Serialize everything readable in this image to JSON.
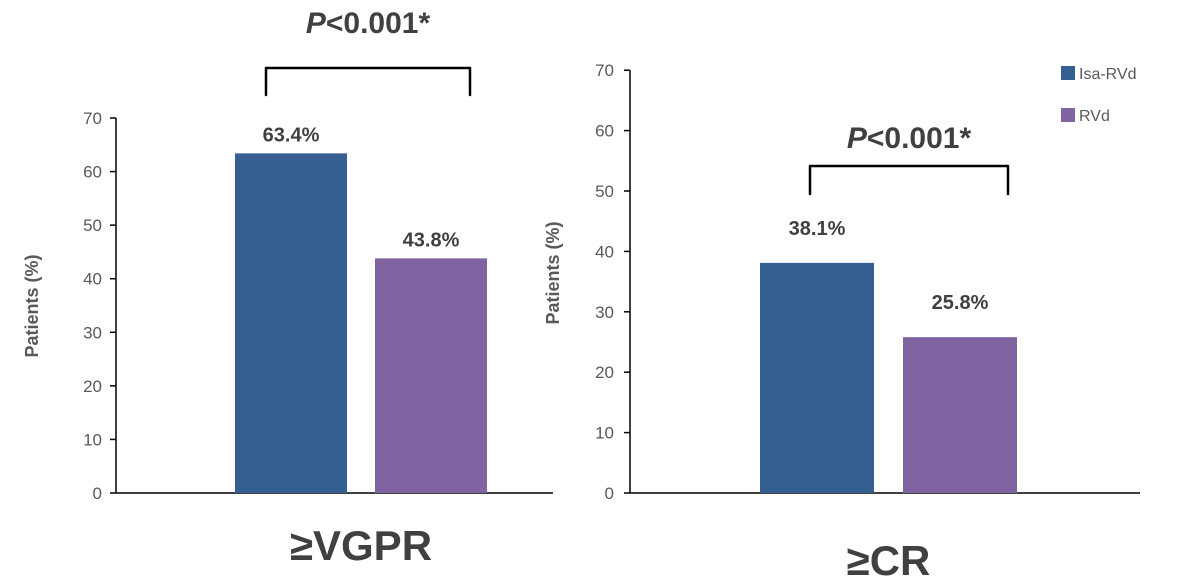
{
  "chart_data": [
    {
      "type": "bar",
      "categories": [
        "≥VGPR"
      ],
      "series": [
        {
          "name": "Isa-RVd",
          "values": [
            63.4
          ],
          "color": "#355F91"
        },
        {
          "name": "RVd",
          "values": [
            43.8
          ],
          "color": "#8064A2"
        }
      ],
      "data_labels": [
        "63.4%",
        "43.8%"
      ],
      "ylabel": "Patients (%)",
      "ylim": [
        0,
        70
      ],
      "yticks": [
        0,
        10,
        20,
        30,
        40,
        50,
        60,
        70
      ],
      "annotation": {
        "italic": "P",
        "text": "<0.001*"
      },
      "grid": false
    },
    {
      "type": "bar",
      "categories": [
        "≥CR"
      ],
      "series": [
        {
          "name": "Isa-RVd",
          "values": [
            38.1
          ],
          "color": "#355F91"
        },
        {
          "name": "RVd",
          "values": [
            25.8
          ],
          "color": "#8064A2"
        }
      ],
      "data_labels": [
        "38.1%",
        "25.8%"
      ],
      "ylabel": "Patients (%)",
      "ylim": [
        0,
        70
      ],
      "yticks": [
        0,
        10,
        20,
        30,
        40,
        50,
        60,
        70
      ],
      "annotation": {
        "italic": "P",
        "text": "<0.001*"
      },
      "grid": false
    }
  ],
  "legend": {
    "placement": "top-right",
    "items": [
      {
        "label": "Isa-RVd",
        "color": "#355F91"
      },
      {
        "label": "RVd",
        "color": "#8064A2"
      }
    ]
  }
}
